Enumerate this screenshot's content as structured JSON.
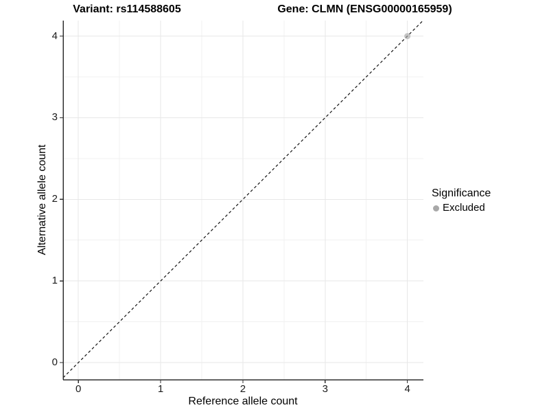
{
  "chart_data": {
    "type": "scatter",
    "title_left": "Variant: rs114588605",
    "title_right": "Gene: CLMN (ENSG00000165959)",
    "xlabel": "Reference allele count",
    "ylabel": "Alternative allele count",
    "x_ticks": [
      "0",
      "1",
      "2",
      "3",
      "4"
    ],
    "y_ticks": [
      "0",
      "1",
      "2",
      "3",
      "4"
    ],
    "x_tick_values": [
      0,
      1,
      2,
      3,
      4
    ],
    "y_tick_values": [
      0,
      1,
      2,
      3,
      4
    ],
    "xlim": [
      -0.185,
      4.195
    ],
    "ylim": [
      -0.21,
      4.19
    ],
    "grid": {
      "major": true,
      "minor": true,
      "major_color": "#e7e7e7",
      "minor_color": "#f1f1f1"
    },
    "identity_line": {
      "slope": 1,
      "intercept": 0,
      "style": "dashed",
      "color": "#111111"
    },
    "points": [
      {
        "x": 4,
        "y": 4,
        "significance": "Excluded"
      }
    ],
    "point_style": {
      "color": "#a8a8a8",
      "opacity": 0.65,
      "radius": 4.5
    },
    "legend": {
      "title": "Significance",
      "position": "right",
      "entries": [
        {
          "label": "Excluded",
          "color": "#a8a8a8"
        }
      ]
    },
    "axis_color": "#2f2f2f",
    "background": "#ffffff"
  }
}
